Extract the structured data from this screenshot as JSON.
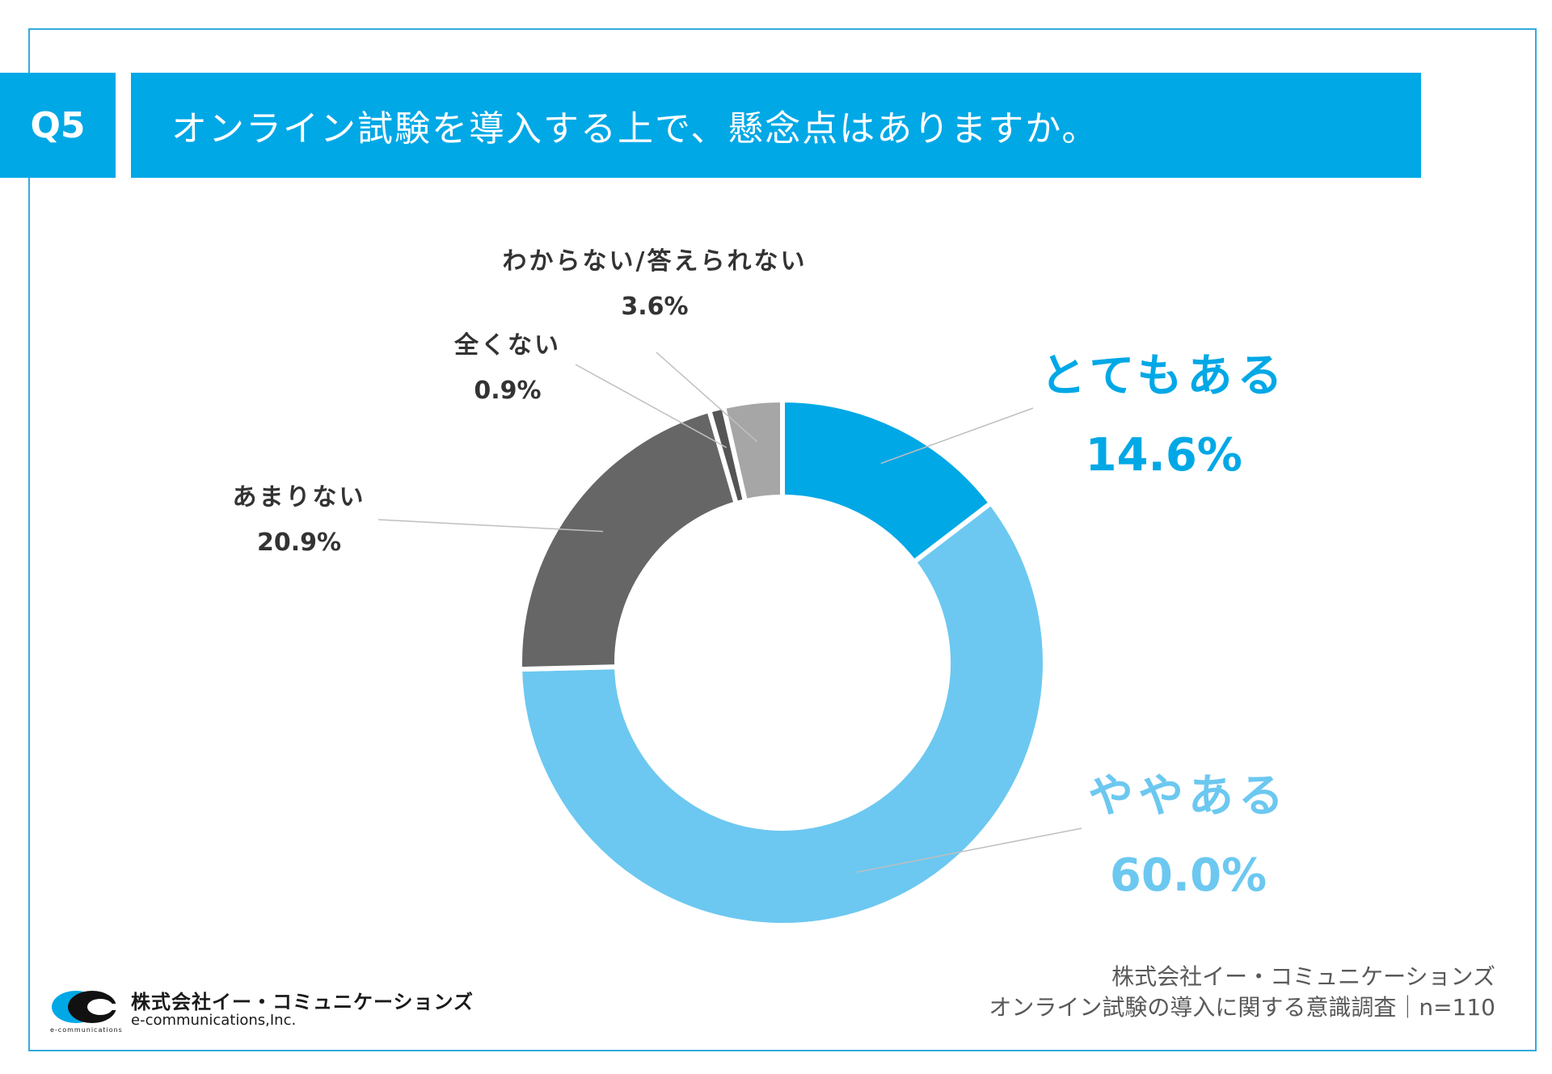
{
  "question": {
    "number": "Q5",
    "text": "オンライン試験を導入する上で、懸念点はありますか。"
  },
  "chart_data": {
    "type": "pie",
    "variant": "donut",
    "slices": [
      {
        "label": "とてもある",
        "value": 14.6,
        "value_label": "14.6%",
        "color": "#00a8e6"
      },
      {
        "label": "ややある",
        "value": 60.0,
        "value_label": "60.0%",
        "color": "#6cc8f0"
      },
      {
        "label": "あまりない",
        "value": 20.9,
        "value_label": "20.9%",
        "color": "#666666"
      },
      {
        "label": "全くない",
        "value": 0.9,
        "value_label": "0.9%",
        "color": "#555555"
      },
      {
        "label": "わからない/答えられない",
        "value": 3.6,
        "value_label": "3.6%",
        "color": "#a6a6a6"
      }
    ],
    "label_colors": {
      "とてもある": "#00a8e6",
      "ややある": "#6cc8f0",
      "default": "#333333"
    }
  },
  "footer": {
    "source_line1": "株式会社イー・コミュニケーションズ",
    "source_line2": "オンライン試験の導入に関する意識調査｜n=110"
  },
  "logo": {
    "company_jp": "株式会社イー・コミュニケーションズ",
    "company_en": "e-communications,Inc.",
    "tagline": "e-communications"
  }
}
